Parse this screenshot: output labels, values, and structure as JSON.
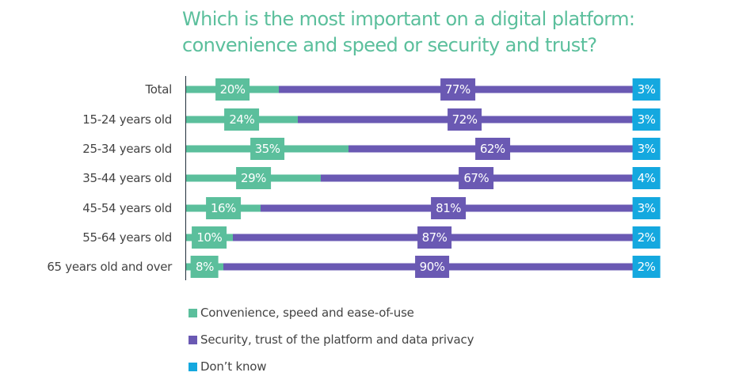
{
  "chart_data": {
    "type": "bar",
    "orientation": "horizontal",
    "stacked": true,
    "title": "Which is the most important on a digital platform: convenience and speed or security and trust?",
    "title_lines": [
      "Which is the most important on a digital platform:",
      "convenience and speed or security and trust?"
    ],
    "categories": [
      "Total",
      "15-24 years old",
      "25-34 years old",
      "35-44 years old",
      "45-54 years old",
      "55-64 years old",
      "65 years old and over"
    ],
    "series": [
      {
        "name": "Convenience, speed and ease-of-use",
        "color": "#5bbf9c",
        "values": [
          20,
          24,
          35,
          29,
          16,
          10,
          8
        ]
      },
      {
        "name": "Security, trust of the platform and data privacy",
        "color": "#6a59b3",
        "values": [
          77,
          72,
          62,
          67,
          81,
          87,
          90
        ]
      },
      {
        "name": "Don’t know",
        "color": "#14a8df",
        "values": [
          3,
          3,
          3,
          4,
          3,
          2,
          2
        ]
      }
    ],
    "value_suffix": "%",
    "xlim": [
      0,
      100
    ],
    "grid": false,
    "legend_position": "bottom-left"
  }
}
